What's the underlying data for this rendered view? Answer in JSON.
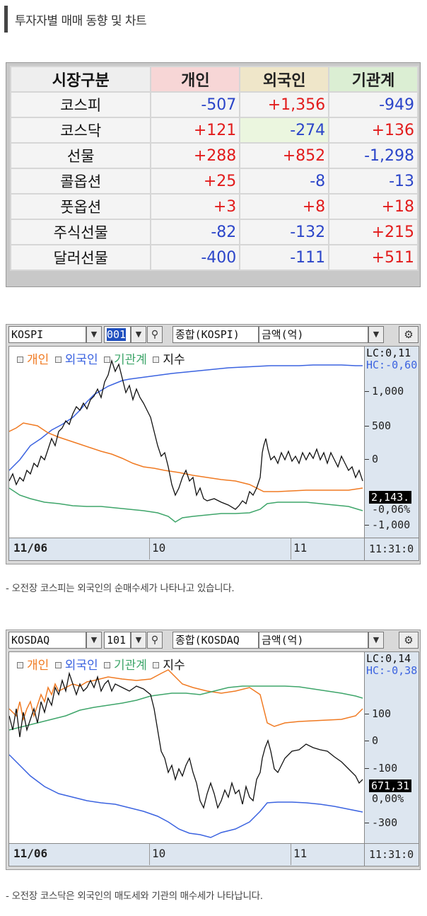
{
  "header": {
    "title": "투자자별 매매 동향 및 차트"
  },
  "table": {
    "columns": [
      "시장구분",
      "개인",
      "외국인",
      "기관계"
    ],
    "rows": [
      {
        "market": "코스피",
        "individual": "-507",
        "foreign": "+1,356",
        "institution": "-949"
      },
      {
        "market": "코스닥",
        "individual": "+121",
        "foreign": "-274",
        "institution": "+136"
      },
      {
        "market": "선물",
        "individual": "+288",
        "foreign": "+852",
        "institution": "-1,298"
      },
      {
        "market": "콜옵션",
        "individual": "+25",
        "foreign": "-8",
        "institution": "-13"
      },
      {
        "market": "풋옵션",
        "individual": "+3",
        "foreign": "+8",
        "institution": "+18"
      },
      {
        "market": "주식선물",
        "individual": "-82",
        "foreign": "-132",
        "institution": "+215"
      },
      {
        "market": "달러선물",
        "individual": "-400",
        "foreign": "-111",
        "institution": "+511"
      }
    ],
    "colors": {
      "positive": "#e21b1b",
      "negative": "#2b45c9"
    }
  },
  "charts": [
    {
      "toolbar": {
        "market": "KOSPI",
        "code": "001",
        "name": "종합(KOSPI)",
        "unit": "금액(억)"
      },
      "legend": {
        "individual": "개인",
        "foreign": "외국인",
        "institution": "기관계",
        "index": "지수"
      },
      "lc": "LC:0,11",
      "hc": "HC:-0,60",
      "yticks": [
        "1,000",
        "500",
        "0",
        "-1,000"
      ],
      "current_value": "2,143.",
      "change_pct": "-0,06%",
      "x_labels": [
        "11/06",
        "10",
        "11"
      ],
      "time": "11:31:0",
      "caption": "- 오전장 코스피는 외국인의 순매수세가 나타나고 있습니다."
    },
    {
      "toolbar": {
        "market": "KOSDAQ",
        "code": "101",
        "name": "종합(KOSDAQ",
        "unit": "금액(억)"
      },
      "legend": {
        "individual": "개인",
        "foreign": "외국인",
        "institution": "기관계",
        "index": "지수"
      },
      "lc": "LC:0,14",
      "hc": "HC:-0,38",
      "yticks": [
        "100",
        "0",
        "-100",
        "-300"
      ],
      "current_value": "671,31",
      "change_pct": "0,00%",
      "x_labels": [
        "11/06",
        "10",
        "11"
      ],
      "time": "11:31:0",
      "caption": "- 오전장 코스닥은 외국인의 매도세와 기관의 매수세가 나타납니다."
    }
  ],
  "colors": {
    "individual": "#f07a22",
    "foreign": "#3b63e0",
    "institution": "#3ea56a",
    "index": "#111111"
  }
}
